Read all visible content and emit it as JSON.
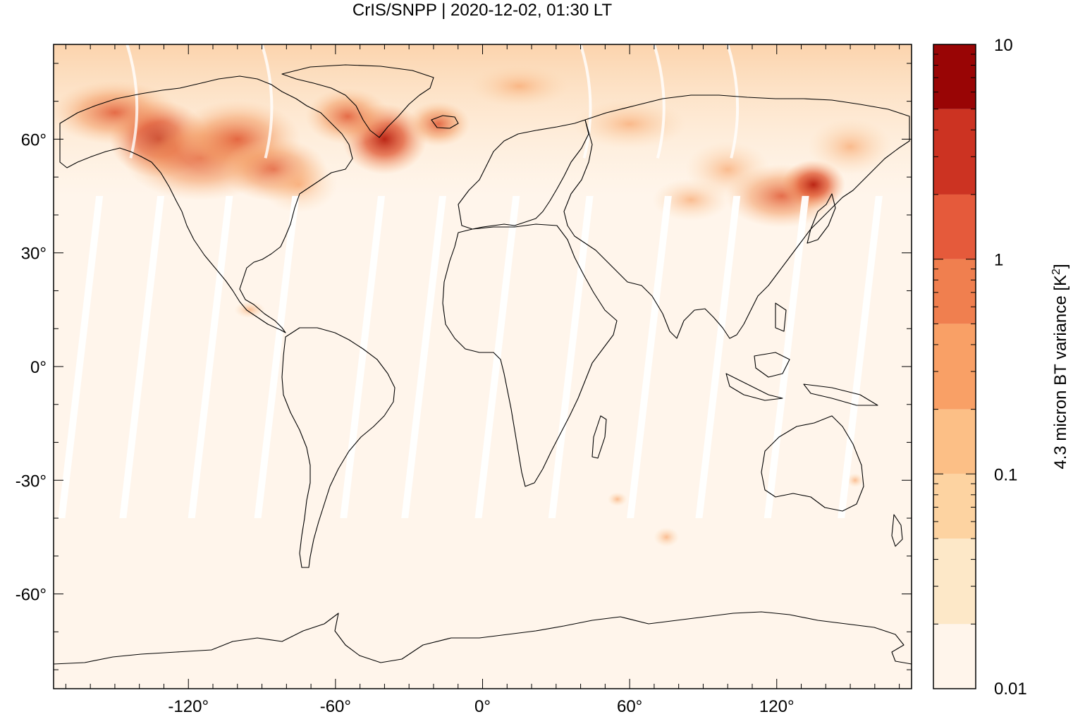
{
  "chart_data": {
    "type": "heatmap",
    "title": "CrIS/SNPP | 2020-12-02, 01:30 LT",
    "projection": "equirectangular world map with coastlines",
    "xlim": [
      -175,
      175
    ],
    "ylim": [
      -85,
      85
    ],
    "x_ticks": [
      {
        "value": -120,
        "label": "-120°"
      },
      {
        "value": -60,
        "label": "-60°"
      },
      {
        "value": 0,
        "label": "0°"
      },
      {
        "value": 60,
        "label": "60°"
      },
      {
        "value": 120,
        "label": "120°"
      }
    ],
    "y_ticks": [
      {
        "value": 60,
        "label": "60°"
      },
      {
        "value": 30,
        "label": "30°"
      },
      {
        "value": 0,
        "label": "0°"
      },
      {
        "value": -30,
        "label": "-30°"
      },
      {
        "value": -60,
        "label": "-60°"
      }
    ],
    "colorbar": {
      "label": "4.3 micron BT variance [K",
      "label_superscript": "2",
      "label_end": "]",
      "scale": "log",
      "range": [
        0.01,
        10
      ],
      "tick_labels": [
        {
          "value": 10,
          "label": "10"
        },
        {
          "value": 1,
          "label": "1"
        },
        {
          "value": 0.1,
          "label": "0.1"
        },
        {
          "value": 0.01,
          "label": "0.01"
        }
      ],
      "levels": [
        {
          "from": 0.01,
          "to": 0.02,
          "color": "#fff5eb"
        },
        {
          "from": 0.02,
          "to": 0.05,
          "color": "#fde8c8"
        },
        {
          "from": 0.05,
          "to": 0.1,
          "color": "#fdd3a1"
        },
        {
          "from": 0.1,
          "to": 0.2,
          "color": "#fcbf86"
        },
        {
          "from": 0.2,
          "to": 0.5,
          "color": "#f9a066"
        },
        {
          "from": 0.5,
          "to": 1,
          "color": "#f07f4f"
        },
        {
          "from": 1,
          "to": 2,
          "color": "#e55a3b"
        },
        {
          "from": 2,
          "to": 5,
          "color": "#cc3322"
        },
        {
          "from": 5,
          "to": 10,
          "color": "#990505"
        }
      ]
    },
    "regions": [
      {
        "label": "background",
        "value": 0.012
      },
      {
        "label": "high northern latitudes",
        "lat_range": [
          55,
          85
        ],
        "value": 0.15
      },
      {
        "label": "western North America / Alaska",
        "lon": -130,
        "lat": 58,
        "value": 3
      },
      {
        "label": "central Canada",
        "lon": -105,
        "lat": 56,
        "value": 1.5
      },
      {
        "label": "southern Greenland",
        "lon": -38,
        "lat": 60,
        "value": 5
      },
      {
        "label": "Iceland region",
        "lon": -15,
        "lat": 65,
        "value": 1.2
      },
      {
        "label": "northeast Asia",
        "lon": 130,
        "lat": 48,
        "value": 1.3
      },
      {
        "label": "central Asia",
        "lon": 80,
        "lat": 42,
        "value": 0.4
      }
    ],
    "swath_gaps": "white diagonal gaps between orbit swaths at low and mid latitudes"
  }
}
